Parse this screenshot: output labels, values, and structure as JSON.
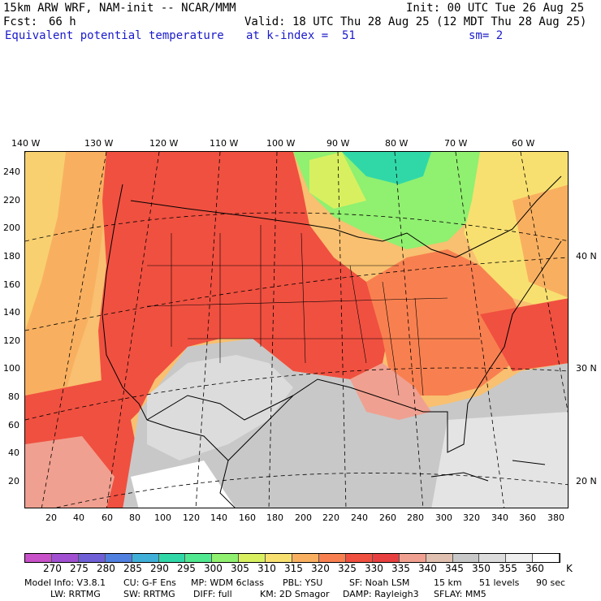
{
  "header": {
    "model": "15km ARW WRF, NAM-init -- NCAR/MMM",
    "init": "Init: 00 UTC Tue 26 Aug 25",
    "fcst_label": "Fcst:",
    "fcst_value": "66 h",
    "valid": "Valid: 18 UTC Thu 28 Aug 25 (12 MDT Thu 28 Aug 25)",
    "field": "Equivalent potential temperature",
    "level": "at k-index =  51",
    "smooth": "sm= 2"
  },
  "axes": {
    "top_lon_labels": [
      "140 W",
      "130 W",
      "120 W",
      "110 W",
      "100 W",
      "90 W",
      "80 W",
      "70 W",
      "60 W"
    ],
    "left_y_labels": [
      "240",
      "220",
      "200",
      "180",
      "160",
      "140",
      "120",
      "100",
      "80",
      "60",
      "40",
      "20"
    ],
    "bottom_x_labels": [
      "20",
      "40",
      "60",
      "80",
      "100",
      "120",
      "140",
      "160",
      "180",
      "200",
      "220",
      "240",
      "260",
      "280",
      "300",
      "320",
      "340",
      "360",
      "380"
    ],
    "right_lat_labels": [
      "40 N",
      "30 N",
      "20 N"
    ]
  },
  "colorbar": {
    "unit": "K",
    "labels": [
      "270",
      "275",
      "280",
      "285",
      "290",
      "295",
      "300",
      "305",
      "310",
      "315",
      "320",
      "325",
      "330",
      "335",
      "340",
      "345",
      "350",
      "355",
      "360"
    ],
    "colors": [
      "#c850c8",
      "#a050d0",
      "#7060d8",
      "#5080e0",
      "#40b0d8",
      "#30d8a8",
      "#50e890",
      "#90f070",
      "#d8f060",
      "#f8e070",
      "#f8b060",
      "#f88050",
      "#f05040",
      "#e84040",
      "#f0a090",
      "#e0c0b0",
      "#c8c8c8",
      "#dcdcdc",
      "#eeeeee",
      "#ffffff"
    ]
  },
  "footer": {
    "line1_a": "Model Info: V3.8.1",
    "line1_b": "CU: G-F Ens",
    "line1_c": "MP: WDM 6class",
    "line1_d": "PBL: YSU",
    "line1_e": "SF: Noah LSM",
    "line1_f": "15 km",
    "line1_g": "51 levels",
    "line1_h": "90 sec",
    "line2_a": "LW: RRTMG",
    "line2_b": "SW: RRTMG",
    "line2_c": "DIFF: full",
    "line2_d": "KM: 2D Smagor",
    "line2_e": "DAMP: Rayleigh3",
    "line2_f": "SFLAY: MM5"
  }
}
